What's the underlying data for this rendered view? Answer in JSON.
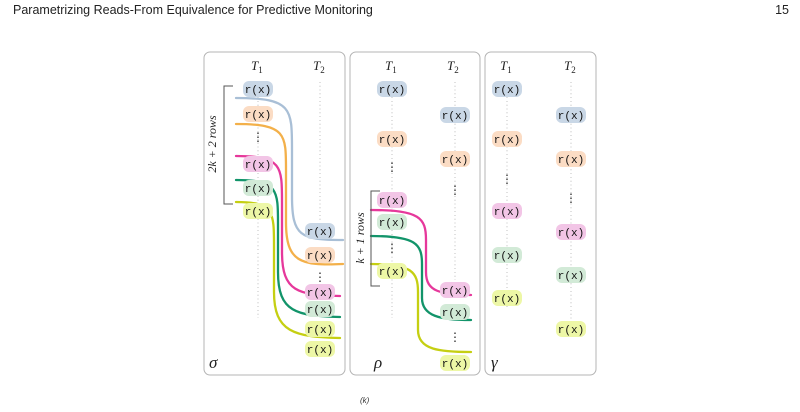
{
  "header": {
    "running_title": "Parametrizing Reads-From Equivalence for Predictive Monitoring",
    "page_number": "15"
  },
  "figure": {
    "caption": "(k)",
    "panels": [
      {
        "symbol": "σ",
        "thread_labels": [
          "T",
          "T"
        ],
        "thread_subscripts": [
          "1",
          "2"
        ],
        "brace_label": "2k + 2 rows",
        "event_text": "r(x)"
      },
      {
        "symbol": "ρ",
        "thread_labels": [
          "T",
          "T"
        ],
        "thread_subscripts": [
          "1",
          "2"
        ],
        "brace_label": "k + 1 rows",
        "event_text": "r(x)"
      },
      {
        "symbol": "γ",
        "thread_labels": [
          "T",
          "T"
        ],
        "thread_subscripts": [
          "1",
          "2"
        ],
        "event_text": "r(x)"
      }
    ],
    "colors": {
      "blue": "#a9bfd6",
      "orange": "#f3b04a",
      "magenta": "#e6389b",
      "green": "#12946a",
      "lime": "#c5cf12",
      "blue_fill": "#c9d7e6",
      "orange_fill": "#fbdcc4",
      "magenta_fill": "#f2c5e6",
      "green_fill": "#d2ead7",
      "lime_fill": "#edf7a6"
    }
  }
}
